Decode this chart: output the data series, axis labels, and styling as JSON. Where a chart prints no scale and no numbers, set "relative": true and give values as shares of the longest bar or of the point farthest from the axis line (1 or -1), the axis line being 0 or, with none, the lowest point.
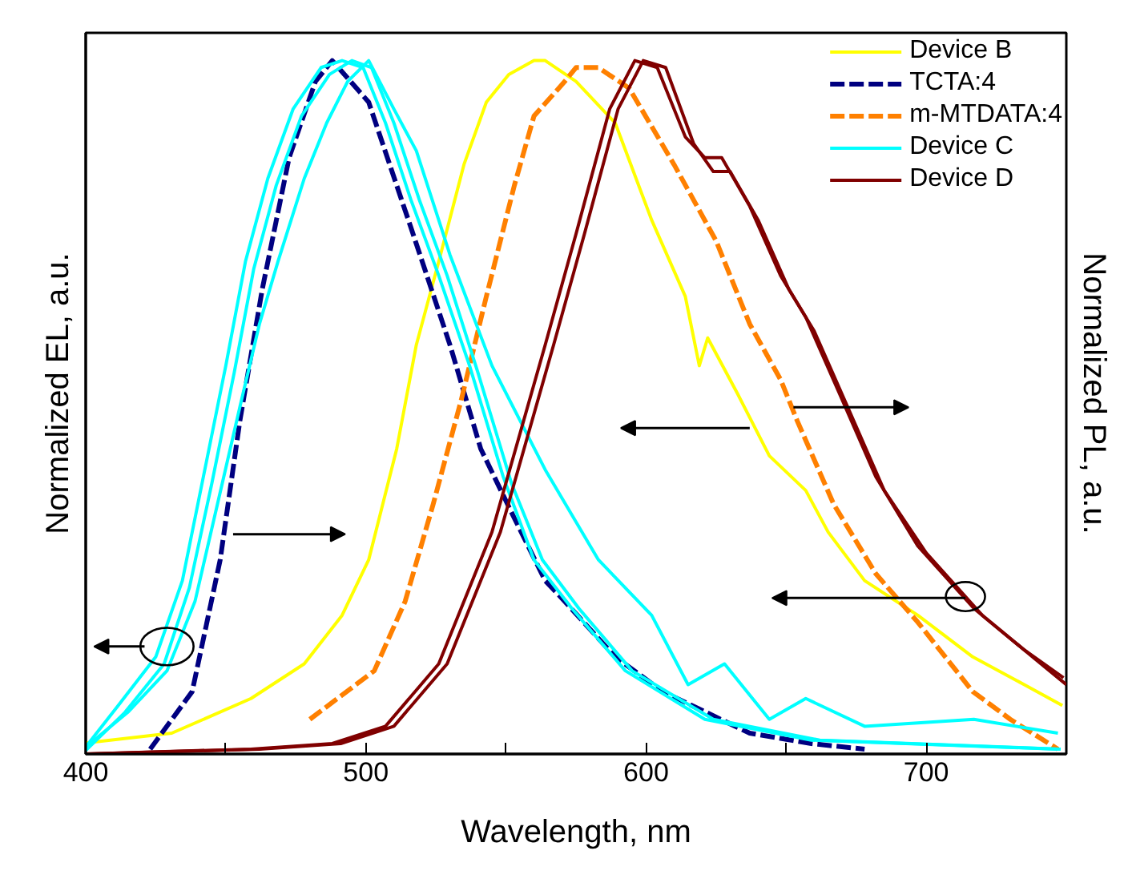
{
  "chart_data": {
    "type": "line",
    "relative": true,
    "xlabel": "Wavelength, nm",
    "ylabel": "Normalized EL, a.u.",
    "y2label": "Normalized PL, a.u.",
    "xlim": [
      400,
      750
    ],
    "xticks": [
      400,
      {
        "value": 450,
        "label": null
      },
      500,
      {
        "value": 550,
        "label": null
      },
      600,
      {
        "value": 650,
        "label": null
      },
      700
    ],
    "tick_labels": "x",
    "grid": false,
    "legend": "top right",
    "marker": "none",
    "series": [
      {
        "name": "Device B",
        "color": "#ffff00",
        "line_style": "solid",
        "x": [
          400,
          430.7,
          459,
          478,
          491.5,
          501,
          511,
          518,
          526,
          535,
          543,
          551,
          560,
          564,
          575,
          589,
          602,
          614,
          619,
          622,
          632.6,
          644,
          657,
          665,
          678,
          697,
          716.6,
          735,
          748.6
        ],
        "values": [
          0.016,
          0.03,
          0.08,
          0.13,
          0.2,
          0.28,
          0.44,
          0.59,
          0.71,
          0.85,
          0.94,
          0.98,
          1.0,
          1.0,
          0.97,
          0.91,
          0.77,
          0.66,
          0.56,
          0.6,
          0.52,
          0.43,
          0.38,
          0.32,
          0.25,
          0.2,
          0.14,
          0.1,
          0.07
        ]
      },
      {
        "name": "TCTA:4",
        "color": "#000080",
        "line_style": "dashed",
        "x": [
          423,
          438,
          448,
          455,
          463,
          472.6,
          482,
          488,
          501,
          516,
          530,
          541,
          553,
          564,
          571,
          589,
          606,
          637,
          659,
          678
        ],
        "values": [
          0.007,
          0.09,
          0.28,
          0.48,
          0.67,
          0.86,
          0.97,
          1.0,
          0.94,
          0.76,
          0.59,
          0.44,
          0.34,
          0.25,
          0.22,
          0.14,
          0.09,
          0.03,
          0.015,
          0.007
        ]
      },
      {
        "name": "m-MTDATA:4",
        "color": "#ff8000",
        "line_style": "dashed",
        "x": [
          480,
          503,
          514,
          524,
          534,
          543,
          553,
          560,
          571,
          575,
          583,
          594,
          610,
          625,
          637,
          648,
          654,
          667,
          682,
          697,
          716.6,
          730,
          747
        ],
        "values": [
          0.05,
          0.12,
          0.22,
          0.36,
          0.51,
          0.66,
          0.82,
          0.92,
          0.97,
          0.99,
          0.99,
          0.96,
          0.85,
          0.74,
          0.62,
          0.54,
          0.48,
          0.36,
          0.26,
          0.19,
          0.09,
          0.05,
          0.007
        ]
      },
      {
        "name": "Device C",
        "color": "#00ffff",
        "line_style": "solid",
        "x": [
          400,
          411.6,
          425,
          434.5,
          442,
          450,
          457,
          465,
          474,
          484,
          491.5,
          499,
          507,
          516,
          526,
          537,
          549,
          560,
          573.5,
          592.6,
          621,
          659,
          747
        ],
        "values": [
          0.01,
          0.07,
          0.14,
          0.25,
          0.4,
          0.56,
          0.71,
          0.83,
          0.93,
          0.99,
          1.0,
          0.99,
          0.91,
          0.8,
          0.69,
          0.56,
          0.4,
          0.28,
          0.21,
          0.12,
          0.05,
          0.02,
          0.007
        ]
      },
      {
        "color": "#00ffff",
        "line_style": "solid",
        "x": [
          400,
          414,
          428,
          437,
          445,
          453,
          460,
          468,
          477,
          487,
          495,
          502,
          510,
          519,
          529,
          540,
          552,
          563,
          576,
          595,
          624,
          662,
          748
        ],
        "values": [
          0.005,
          0.06,
          0.13,
          0.24,
          0.39,
          0.55,
          0.7,
          0.82,
          0.92,
          0.98,
          1.0,
          0.99,
          0.91,
          0.8,
          0.69,
          0.55,
          0.39,
          0.28,
          0.21,
          0.12,
          0.05,
          0.02,
          0.007
        ]
      },
      {
        "color": "#00ffff",
        "line_style": "solid",
        "x": [
          400,
          415,
          429,
          439,
          447,
          455,
          462,
          468.6,
          478,
          486,
          493.5,
          501,
          510,
          518,
          530,
          545,
          564,
          583,
          602,
          615,
          628,
          644,
          657,
          678,
          717,
          747
        ],
        "values": [
          0.01,
          0.06,
          0.12,
          0.22,
          0.36,
          0.5,
          0.62,
          0.71,
          0.83,
          0.91,
          0.97,
          1.0,
          0.93,
          0.87,
          0.72,
          0.56,
          0.41,
          0.28,
          0.2,
          0.1,
          0.13,
          0.05,
          0.08,
          0.04,
          0.05,
          0.03
        ]
      },
      {
        "name": "Device D",
        "color": "#800000",
        "line_style": "solid",
        "x": [
          400,
          459,
          488,
          507,
          526,
          545,
          564,
          575,
          587,
          596,
          604,
          614,
          621,
          627,
          637,
          648,
          657,
          669,
          682,
          697,
          717,
          735,
          749
        ],
        "values": [
          0.0,
          0.007,
          0.015,
          0.04,
          0.13,
          0.32,
          0.59,
          0.75,
          0.93,
          1.0,
          0.99,
          0.89,
          0.86,
          0.86,
          0.79,
          0.69,
          0.63,
          0.52,
          0.4,
          0.3,
          0.21,
          0.15,
          0.11
        ]
      },
      {
        "color": "#800000",
        "line_style": "solid",
        "x": [
          400,
          462,
          491,
          510,
          529,
          548,
          567,
          578,
          590,
          599,
          607,
          617,
          624,
          630,
          640,
          651,
          660,
          672,
          685,
          700,
          720,
          738,
          750
        ],
        "values": [
          0.0,
          0.007,
          0.015,
          0.04,
          0.13,
          0.32,
          0.59,
          0.75,
          0.93,
          1.0,
          0.99,
          0.88,
          0.84,
          0.84,
          0.77,
          0.67,
          0.61,
          0.5,
          0.38,
          0.29,
          0.2,
          0.14,
          0.1
        ]
      }
    ]
  }
}
